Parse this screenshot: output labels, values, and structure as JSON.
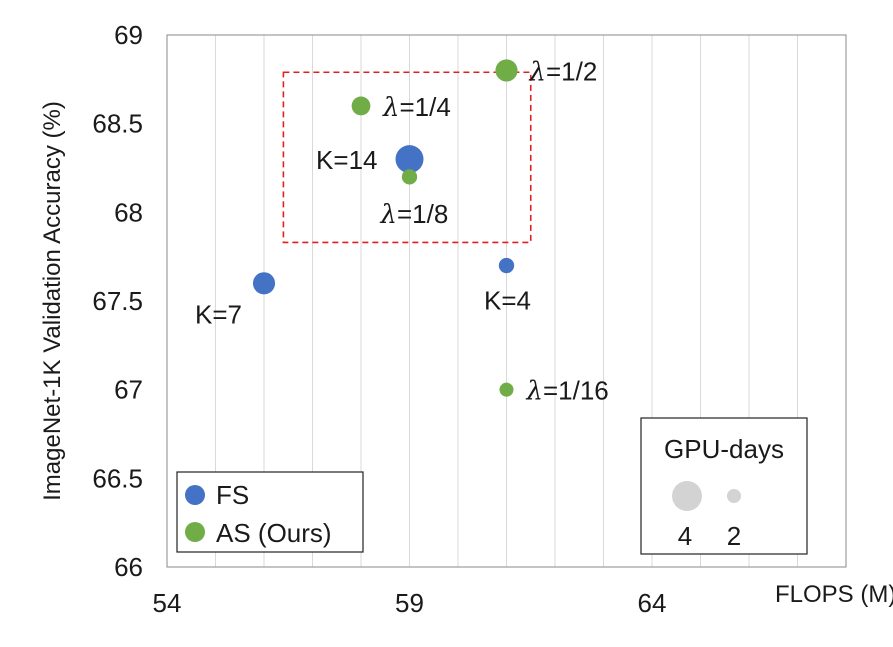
{
  "chart_data": {
    "type": "scatter",
    "title": "",
    "xlabel": "FLOPS (M)",
    "ylabel": "ImageNet-1K Validation Accuracy (%)",
    "xlim": [
      54,
      68
    ],
    "ylim": [
      66,
      69
    ],
    "xticks": [
      54,
      59,
      64
    ],
    "yticks": [
      66,
      66.5,
      67,
      67.5,
      68,
      68.5,
      69
    ],
    "grid": "vertical",
    "colors": {
      "FS": "#4472C4",
      "AS": "#70AD47",
      "size_legend": "#D3D3D3"
    },
    "series": [
      {
        "name": "FS",
        "points": [
          {
            "x": 59.0,
            "y": 68.3,
            "gpu_days": 4,
            "label": "K=14"
          },
          {
            "x": 56.0,
            "y": 67.6,
            "gpu_days": 2.5,
            "label": "K=7"
          },
          {
            "x": 61.0,
            "y": 67.7,
            "gpu_days": 1.2,
            "label": "K=4"
          }
        ]
      },
      {
        "name": "AS",
        "points": [
          {
            "x": 61.0,
            "y": 68.8,
            "gpu_days": 2.5,
            "label_sym": "λ",
            "label_val": "=1/2"
          },
          {
            "x": 58.0,
            "y": 68.6,
            "gpu_days": 1.8,
            "label_sym": "λ",
            "label_val": "=1/4"
          },
          {
            "x": 59.0,
            "y": 68.2,
            "gpu_days": 1.2,
            "label_sym": "λ",
            "label_val": "=1/8"
          },
          {
            "x": 61.0,
            "y": 67.0,
            "gpu_days": 1.0,
            "label_sym": "λ",
            "label_val": "=1/16"
          }
        ]
      }
    ],
    "highlight_box": {
      "x": [
        56.4,
        61.5
      ],
      "y": [
        67.83,
        68.79
      ],
      "style": "dashed",
      "color": "#E02020"
    },
    "legend": {
      "placement": "bottom-left",
      "entries": [
        {
          "name": "FS",
          "label": "FS"
        },
        {
          "name": "AS",
          "label": "AS (Ours)"
        }
      ]
    },
    "size_legend": {
      "placement": "bottom-right",
      "title": "GPU-days",
      "entries": [
        {
          "value": 4,
          "label": "4"
        },
        {
          "value": 2,
          "label": "2"
        }
      ]
    }
  }
}
